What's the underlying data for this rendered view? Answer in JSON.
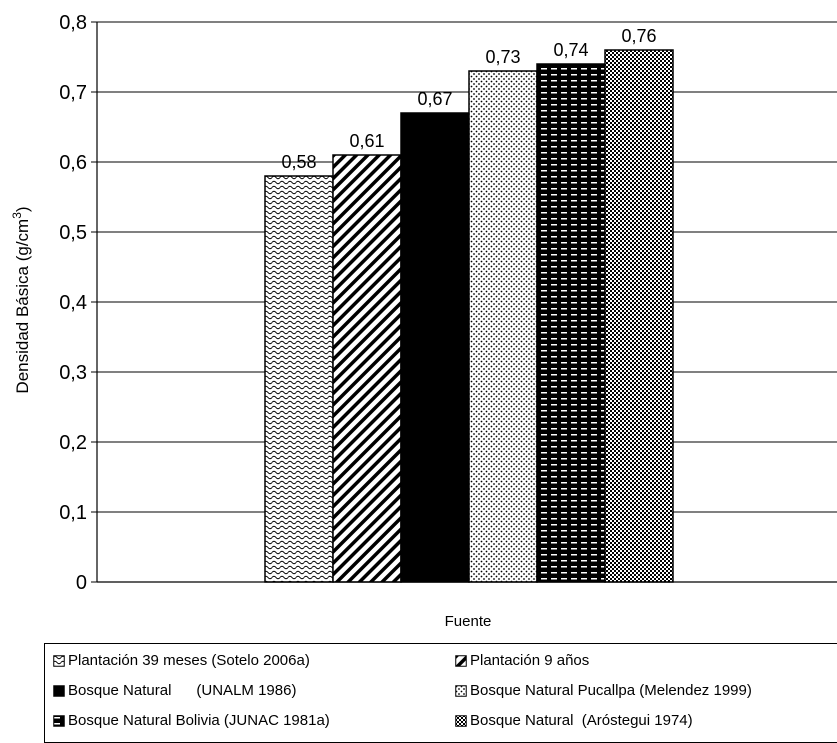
{
  "chart_data": {
    "type": "bar",
    "xlabel": "Fuente",
    "ylabel": "Densidad Básica (g/cm³)",
    "ylim": [
      0,
      0.8
    ],
    "yticks": [
      "0",
      "0,1",
      "0,2",
      "0,3",
      "0,4",
      "0,5",
      "0,6",
      "0,7",
      "0,8"
    ],
    "grid": true,
    "legend_position": "bottom",
    "series": [
      {
        "name": "Plantación 39 meses (Sotelo 2006a)",
        "value": 0.58,
        "label": "0,58",
        "pattern": "wavy"
      },
      {
        "name": "Plantación 9 años",
        "value": 0.61,
        "label": "0,61",
        "pattern": "diagonal"
      },
      {
        "name": "Bosque Natural      (UNALM 1986)",
        "value": 0.67,
        "label": "0,67",
        "pattern": "solid"
      },
      {
        "name": "Bosque Natural Pucallpa (Melendez 1999)",
        "value": 0.73,
        "label": "0,73",
        "pattern": "dots"
      },
      {
        "name": "Bosque Natural Bolivia (JUNAC 1981a)",
        "value": 0.74,
        "label": "0,74",
        "pattern": "dashes"
      },
      {
        "name": "Bosque Natural  (Aróstegui 1974)",
        "value": 0.76,
        "label": "0,76",
        "pattern": "checker"
      }
    ]
  },
  "colors": {
    "ink": "#000000",
    "background": "#ffffff"
  }
}
